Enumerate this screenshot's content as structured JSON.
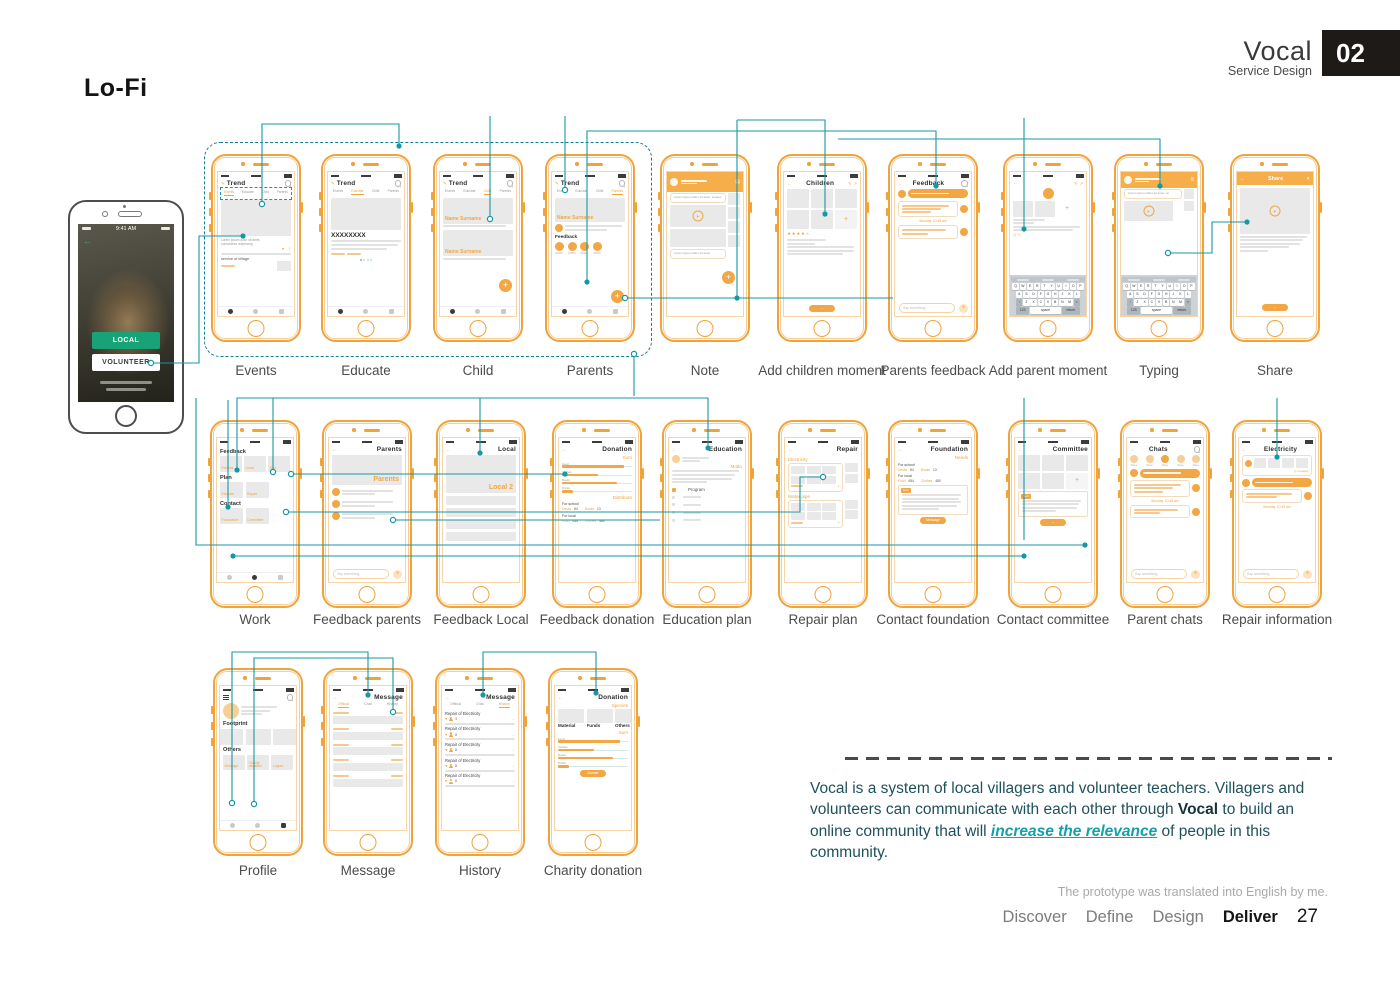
{
  "header": {
    "brand": "Vocal",
    "subtitle": "Service Design",
    "page_number": "02"
  },
  "page_heading": "Lo-Fi",
  "hero_phone": {
    "status_time": "9:41 AM",
    "primary_button": "LOCAL",
    "secondary_button": "VOLUNTEER"
  },
  "trend": {
    "title": "Trend",
    "tabs": [
      "Events",
      "Educate",
      "Child",
      "Parents"
    ]
  },
  "strings": {
    "name_surname": "Name Surname",
    "lorem": "Lorem ipsum dolor sit amet, consectetur adipiscing",
    "service_of_village": "service of village",
    "heading_placeholder": "XXXXXXXX",
    "feedback": "Feedback",
    "say_something": "Say something",
    "timestamp": "Monday, 10:45 am",
    "keyboard_rows": [
      "QWERTYUIOP",
      "ASDFGHJKL",
      "ZXCVBNM"
    ],
    "space_key": "space",
    "return_key": "return",
    "contact_name": "Name"
  },
  "phones": [
    {
      "id": "events",
      "label": "Events",
      "type": "trend",
      "active_tab": 0
    },
    {
      "id": "educate",
      "label": "Educate",
      "type": "trend",
      "active_tab": 1
    },
    {
      "id": "child",
      "label": "Child",
      "type": "trend",
      "active_tab": 2
    },
    {
      "id": "parents",
      "label": "Parents",
      "type": "trend",
      "active_tab": 3,
      "section": "Feedback"
    },
    {
      "id": "note",
      "label": "Note",
      "type": "note"
    },
    {
      "id": "add-children",
      "label": "Add children moment",
      "type": "add-moment",
      "title": "Children"
    },
    {
      "id": "parents-feedback",
      "label": "Parents feedback",
      "type": "chat",
      "title": "Feedback"
    },
    {
      "id": "add-parent",
      "label": "Add parent moment",
      "type": "add-parent",
      "title": ""
    },
    {
      "id": "typing",
      "label": "Typing",
      "type": "typing",
      "title": ""
    },
    {
      "id": "share",
      "label": "Share",
      "type": "share",
      "title": "Share"
    },
    {
      "id": "work",
      "label": "Work",
      "type": "work",
      "sections": [
        {
          "heading": "Feedback",
          "tiles": [
            "Parents",
            "Local",
            "Don"
          ]
        },
        {
          "heading": "Plan",
          "tiles": [
            "Educate",
            "Repair"
          ]
        },
        {
          "heading": "Contact",
          "tiles": [
            "Foundation",
            "Committee"
          ]
        }
      ]
    },
    {
      "id": "feedback-parents",
      "label": "Feedback parents",
      "type": "banner-list",
      "title": "Parents",
      "banner": "Parents"
    },
    {
      "id": "feedback-local",
      "label": "Feedback Local",
      "type": "banner-plain",
      "title": "Local",
      "banner": "Local 2"
    },
    {
      "id": "feedback-donation",
      "label": "Feedback donation",
      "type": "donation",
      "title": "Donation",
      "sum_label": "Sum",
      "bars": [
        {
          "name": "Food",
          "value": 88
        },
        {
          "name": "Clothes",
          "value": 52
        },
        {
          "name": "Books",
          "value": 78
        },
        {
          "name": "Drinks",
          "value": 16
        }
      ],
      "distribute_label": "Distribute",
      "for_school": {
        "label": "For school",
        "stats": [
          {
            "name": "Desks",
            "value": "84"
          },
          {
            "name": "Books",
            "value": "13"
          }
        ]
      },
      "for_local": {
        "label": "For local",
        "stats": [
          {
            "name": "Food",
            "value": "654"
          },
          {
            "name": "Clothes",
            "value": "480"
          }
        ]
      }
    },
    {
      "id": "education-plan",
      "label": "Education plan",
      "type": "education",
      "title": "Education",
      "motto_label": "Motto",
      "program_label": "Program"
    },
    {
      "id": "repair-plan",
      "label": "Repair plan",
      "type": "repair",
      "title": "Repair",
      "sections": [
        "Electricity",
        "Water pipe"
      ]
    },
    {
      "id": "contact-foundation",
      "label": "Contact foundation",
      "type": "foundation",
      "title": "Foundation",
      "needs_label": "Needs",
      "for_school": {
        "label": "For school",
        "stats": [
          {
            "name": "Desks",
            "value": "84"
          },
          {
            "name": "Books",
            "value": "13"
          }
        ]
      },
      "for_local": {
        "label": "For local",
        "stats": [
          {
            "name": "Food",
            "value": "654"
          },
          {
            "name": "Clothes",
            "value": "480"
          }
        ]
      },
      "text_tag": "Text",
      "button": "Message"
    },
    {
      "id": "contact-committee",
      "label": "Contact committee",
      "type": "committee",
      "title": "Committee",
      "text_tag": "Text",
      "button": "→"
    },
    {
      "id": "parent-chats",
      "label": "Parent chats",
      "type": "chats",
      "title": "Chats"
    },
    {
      "id": "repair-info",
      "label": "Repair information",
      "type": "repair-info",
      "title": "Electricity",
      "location_label": "Location"
    },
    {
      "id": "profile",
      "label": "Profile",
      "type": "profile",
      "footprint_label": "Footprint",
      "others_label": "Others",
      "tiles": [
        "Message",
        "Charity donation",
        "Logout"
      ]
    },
    {
      "id": "message",
      "label": "Message",
      "type": "message",
      "title": "Message",
      "tabs": [
        "Official",
        "Chat",
        "History"
      ],
      "active_tab": 0,
      "item_count": 5
    },
    {
      "id": "history",
      "label": "History",
      "type": "history",
      "title": "Message",
      "tabs": [
        "Official",
        "Chat",
        "History"
      ],
      "active_tab": 2,
      "items": [
        {
          "title": "Repair of Electricity",
          "people": "3"
        },
        {
          "title": "Repair of Electricity",
          "people": "8"
        },
        {
          "title": "Repair of Electricity",
          "people": "8"
        },
        {
          "title": "Repair of Electricity",
          "people": "8"
        },
        {
          "title": "Repair of Electricity",
          "people": "8"
        }
      ]
    },
    {
      "id": "charity",
      "label": "Charity donation",
      "type": "charity",
      "title": "Donation",
      "species_label": "Species",
      "cards": [
        "Material",
        "Funds",
        "Others"
      ],
      "sum_label": "Sum",
      "bars": [
        {
          "name": "Food",
          "value": 88
        },
        {
          "name": "Clothes",
          "value": 52
        },
        {
          "name": "Books",
          "value": 78
        },
        {
          "name": "Drinks",
          "value": 16
        }
      ],
      "button": "Donate"
    }
  ],
  "description": {
    "p1": "Vocal is a system of local villagers and volunteer teachers. Villagers and volunteers can communicate with each other through ",
    "bold": "Vocal",
    "p2": " to build an online community that will ",
    "highlight": "increase the relevance",
    "p3": " of people in this community."
  },
  "footnote": "The prototype was translated into English by me.",
  "footer": {
    "steps": [
      "Discover",
      "Define",
      "Design",
      "Deliver"
    ],
    "active_step": "Deliver",
    "page": "27"
  },
  "colors": {
    "orange": "#F2A33C",
    "teal": "#1797A3",
    "green": "#18A377",
    "dark": "#1E1A18"
  }
}
